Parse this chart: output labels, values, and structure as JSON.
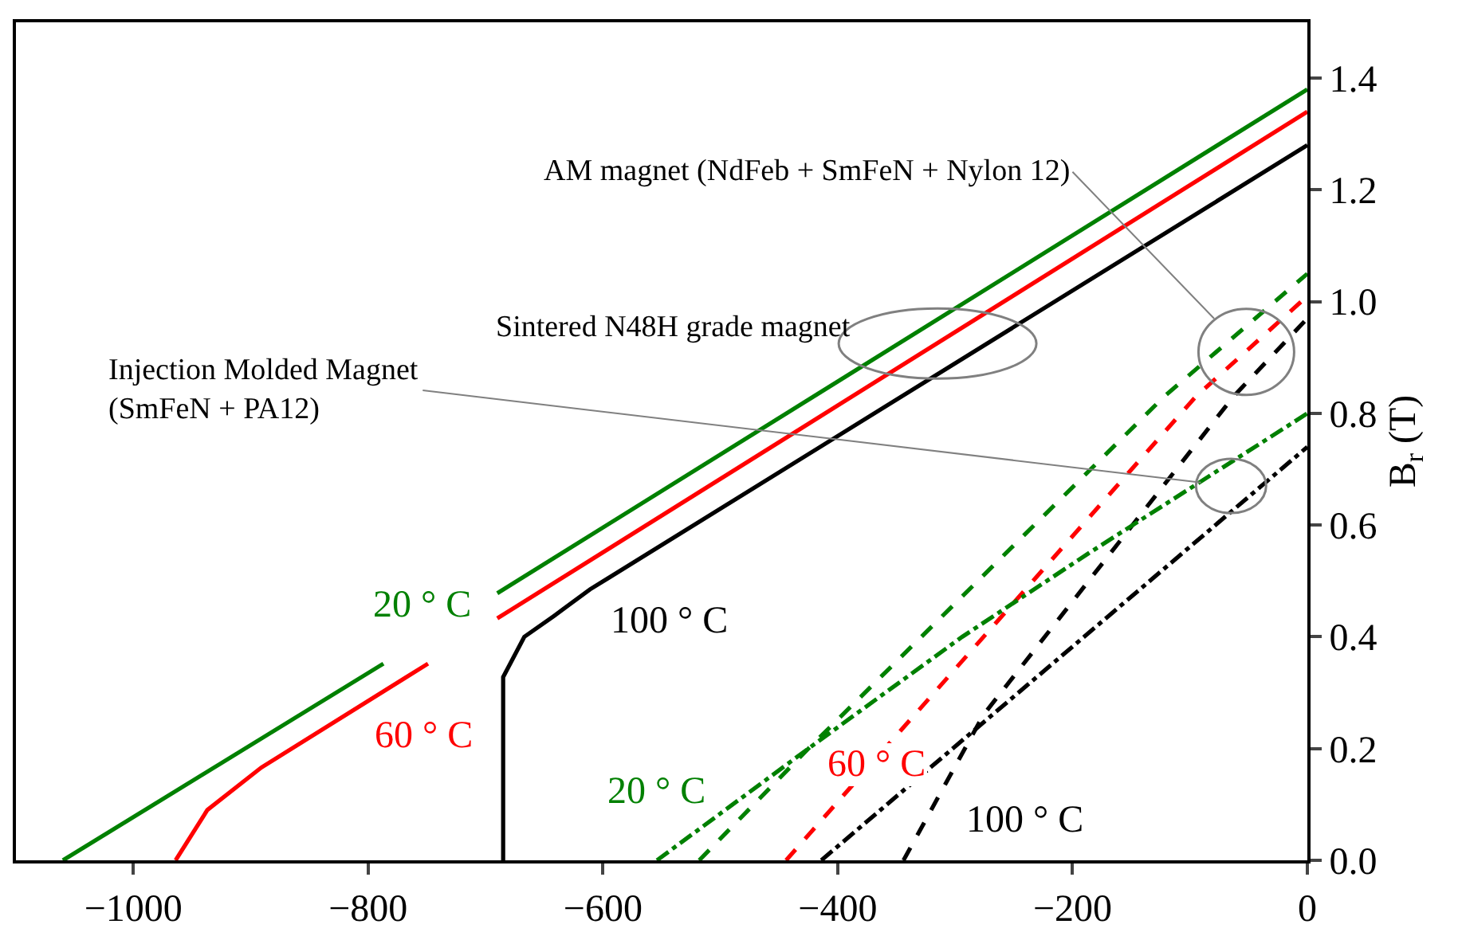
{
  "chart_data": {
    "type": "line",
    "ylabel": "B$_{r}$ (T)",
    "xlim": [
      -1100,
      0
    ],
    "xticks": [
      {
        "value": -1000,
        "label": "−1000"
      },
      {
        "value": -800,
        "label": "−800"
      },
      {
        "value": -600,
        "label": "−600"
      },
      {
        "value": -400,
        "label": "−400"
      },
      {
        "value": -200,
        "label": "−200"
      },
      0
    ],
    "ylim": [
      0,
      1.5
    ],
    "yticks": [
      {
        "value": 0,
        "label": "0.0"
      },
      0.2,
      0.4,
      0.6,
      0.8,
      {
        "value": 1,
        "label": "1.0"
      },
      1.2,
      1.4
    ],
    "grid": false,
    "marker": "none",
    "series": [
      {
        "color": "#008000",
        "line_style": "solid",
        "x": [
          -1060,
          -787,
          -740,
          -690,
          0
        ],
        "values": [
          0,
          0.352,
          null,
          0.478,
          1.38
        ]
      },
      {
        "color": "#ff0000",
        "line_style": "solid",
        "x": [
          -964,
          -937,
          -891,
          -749,
          -720,
          -690,
          0
        ],
        "values": [
          0,
          0.09,
          0.166,
          0.352,
          null,
          0.433,
          1.34
        ]
      },
      {
        "color": "#000000",
        "line_style": "solid",
        "x": [
          -685,
          -685,
          -667,
          -642,
          -611,
          0
        ],
        "values": [
          0,
          0.328,
          0.4,
          0.437,
          0.485,
          1.28
        ]
      },
      {
        "color": "#008000",
        "line_style": "dashed",
        "x": [
          -518,
          -425,
          -122,
          0
        ],
        "values": [
          0,
          0.2,
          0.83,
          1.05
        ]
      },
      {
        "color": "#ff0000",
        "line_style": "dashed",
        "x": [
          -444,
          -95,
          0
        ],
        "values": [
          0,
          0.83,
          1.01
        ]
      },
      {
        "color": "#000000",
        "line_style": "dashed",
        "x": [
          -344,
          -276,
          -63,
          0
        ],
        "values": [
          0,
          0.26,
          0.83,
          0.97
        ]
      },
      {
        "color": "#008000",
        "line_style": "dashdot",
        "x": [
          -554,
          -425,
          -294,
          -186,
          0
        ],
        "values": [
          0,
          0.2,
          0.4,
          0.55,
          0.8
        ]
      },
      {
        "color": "#000000",
        "line_style": "dashdot",
        "x": [
          -414,
          0
        ],
        "values": [
          0,
          0.74
        ]
      }
    ],
    "annotations": [
      {
        "text": "AM magnet (NdFeb + SmFeN + Nylon 12)",
        "x": -52,
        "y": 0.91
      },
      {
        "text": "Sintered N48H grade magnet",
        "x": -315,
        "y": 0.925
      },
      {
        "text": "Injection Molded Magnet\n(SmFeN + PA12)",
        "x": -65,
        "y": 0.67
      },
      {
        "text": "20 ° C",
        "x": -787,
        "y": 0.352
      },
      {
        "text": "60 ° C",
        "x": -753,
        "y": 0.347
      },
      {
        "text": "100 ° C",
        "x": -611,
        "y": 0.485
      },
      {
        "text": "20 ° C",
        "x": -554,
        "y": 0
      },
      {
        "text": "60 ° C",
        "x": -366,
        "y": 0.186
      },
      {
        "text": "100 ° C",
        "x": -344,
        "y": 0
      }
    ]
  }
}
